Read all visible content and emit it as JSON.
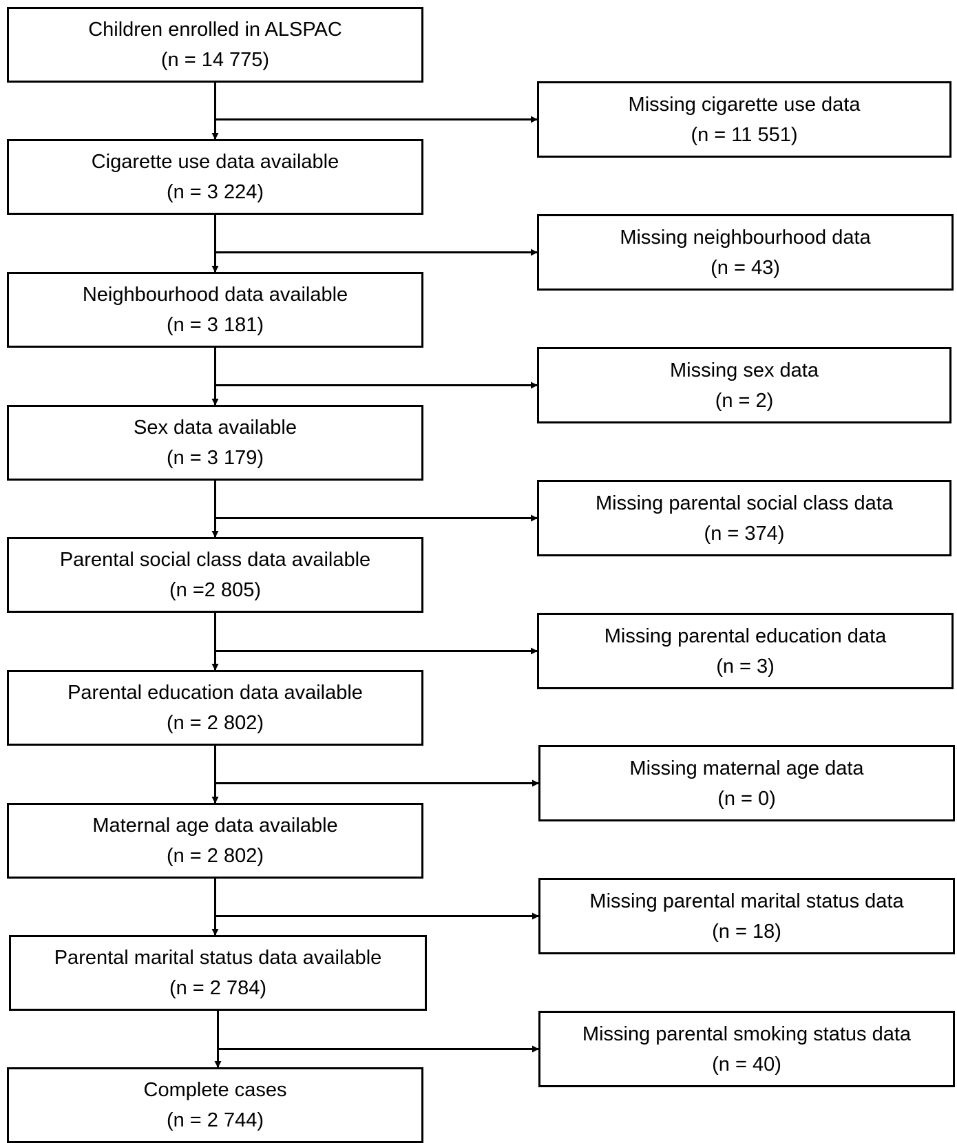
{
  "flowchart": {
    "main_steps": [
      {
        "label": "Children enrolled in ALSPAC",
        "count": "(n = 14 775)"
      },
      {
        "label": "Cigarette use data available",
        "count": "(n = 3 224)"
      },
      {
        "label": "Neighbourhood data available",
        "count": "(n = 3 181)"
      },
      {
        "label": "Sex data available",
        "count": "(n = 3 179)"
      },
      {
        "label": "Parental social class data available",
        "count": "(n =2 805)"
      },
      {
        "label": "Parental education data available",
        "count": "(n = 2 802)"
      },
      {
        "label": "Maternal age data available",
        "count": "(n = 2 802)"
      },
      {
        "label": "Parental marital status data available",
        "count": "(n = 2 784)"
      },
      {
        "label": "Complete cases",
        "count": "(n = 2 744)"
      }
    ],
    "exclusions": [
      {
        "label": "Missing cigarette use data",
        "count": "(n = 11 551)"
      },
      {
        "label": "Missing neighbourhood data",
        "count": "(n = 43)"
      },
      {
        "label": "Missing sex data",
        "count": "(n = 2)"
      },
      {
        "label": "Missing parental social class data",
        "count": "(n = 374)"
      },
      {
        "label": "Missing parental education data",
        "count": "(n = 3)"
      },
      {
        "label": "Missing maternal age data",
        "count": "(n = 0)"
      },
      {
        "label": "Missing parental marital status data",
        "count": "(n = 18)"
      },
      {
        "label": "Missing parental smoking status data",
        "count": "(n = 40)"
      }
    ]
  }
}
